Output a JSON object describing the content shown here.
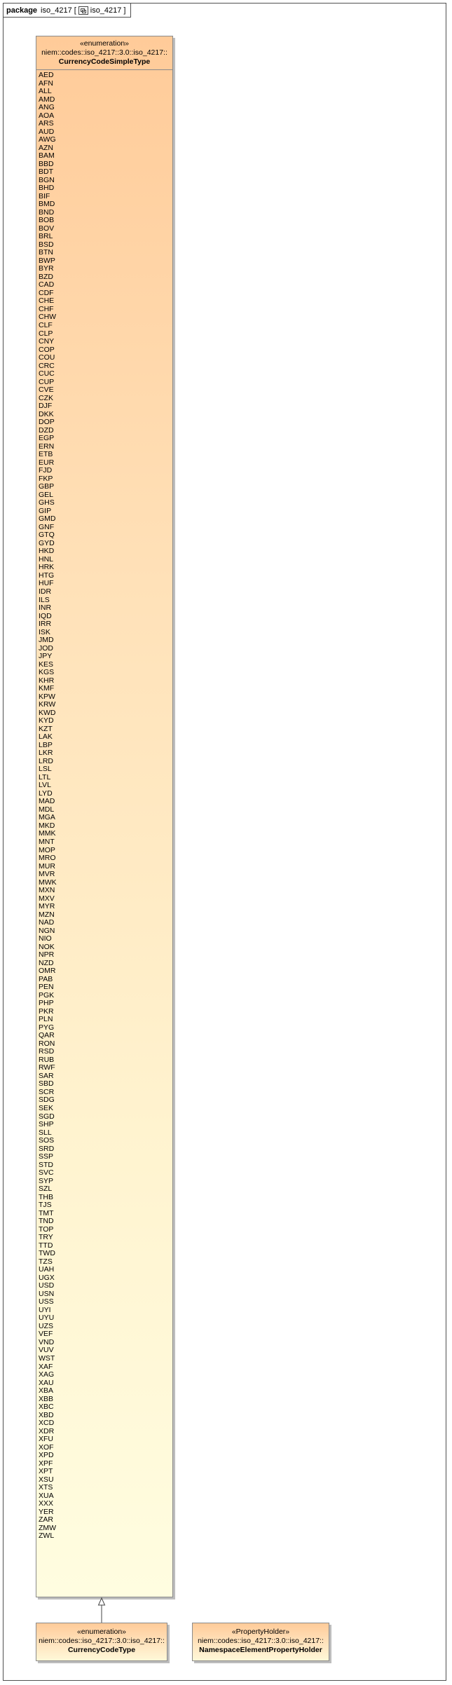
{
  "frame": {
    "keyword": "package",
    "name": "iso_4217",
    "bracket_open": "[",
    "diagram_name": "iso_4217",
    "bracket_close": "]",
    "icon": "diagram-icon"
  },
  "classes": {
    "currency_code_simple_type": {
      "stereotype": "«enumeration»",
      "qualifier": "niem::codes::iso_4217::3.0::iso_4217::",
      "name": "CurrencyCodeSimpleType",
      "literals": [
        "AED",
        "AFN",
        "ALL",
        "AMD",
        "ANG",
        "AOA",
        "ARS",
        "AUD",
        "AWG",
        "AZN",
        "BAM",
        "BBD",
        "BDT",
        "BGN",
        "BHD",
        "BIF",
        "BMD",
        "BND",
        "BOB",
        "BOV",
        "BRL",
        "BSD",
        "BTN",
        "BWP",
        "BYR",
        "BZD",
        "CAD",
        "CDF",
        "CHE",
        "CHF",
        "CHW",
        "CLF",
        "CLP",
        "CNY",
        "COP",
        "COU",
        "CRC",
        "CUC",
        "CUP",
        "CVE",
        "CZK",
        "DJF",
        "DKK",
        "DOP",
        "DZD",
        "EGP",
        "ERN",
        "ETB",
        "EUR",
        "FJD",
        "FKP",
        "GBP",
        "GEL",
        "GHS",
        "GIP",
        "GMD",
        "GNF",
        "GTQ",
        "GYD",
        "HKD",
        "HNL",
        "HRK",
        "HTG",
        "HUF",
        "IDR",
        "ILS",
        "INR",
        "IQD",
        "IRR",
        "ISK",
        "JMD",
        "JOD",
        "JPY",
        "KES",
        "KGS",
        "KHR",
        "KMF",
        "KPW",
        "KRW",
        "KWD",
        "KYD",
        "KZT",
        "LAK",
        "LBP",
        "LKR",
        "LRD",
        "LSL",
        "LTL",
        "LVL",
        "LYD",
        "MAD",
        "MDL",
        "MGA",
        "MKD",
        "MMK",
        "MNT",
        "MOP",
        "MRO",
        "MUR",
        "MVR",
        "MWK",
        "MXN",
        "MXV",
        "MYR",
        "MZN",
        "NAD",
        "NGN",
        "NIO",
        "NOK",
        "NPR",
        "NZD",
        "OMR",
        "PAB",
        "PEN",
        "PGK",
        "PHP",
        "PKR",
        "PLN",
        "PYG",
        "QAR",
        "RON",
        "RSD",
        "RUB",
        "RWF",
        "SAR",
        "SBD",
        "SCR",
        "SDG",
        "SEK",
        "SGD",
        "SHP",
        "SLL",
        "SOS",
        "SRD",
        "SSP",
        "STD",
        "SVC",
        "SYP",
        "SZL",
        "THB",
        "TJS",
        "TMT",
        "TND",
        "TOP",
        "TRY",
        "TTD",
        "TWD",
        "TZS",
        "UAH",
        "UGX",
        "USD",
        "USN",
        "USS",
        "UYI",
        "UYU",
        "UZS",
        "VEF",
        "VND",
        "VUV",
        "WST",
        "XAF",
        "XAG",
        "XAU",
        "XBA",
        "XBB",
        "XBC",
        "XBD",
        "XCD",
        "XDR",
        "XFU",
        "XOF",
        "XPD",
        "XPF",
        "XPT",
        "XSU",
        "XTS",
        "XUA",
        "XXX",
        "YER",
        "ZAR",
        "ZMW",
        "ZWL"
      ]
    },
    "currency_code_type": {
      "stereotype": "«enumeration»",
      "qualifier": "niem::codes::iso_4217::3.0::iso_4217::",
      "name": "CurrencyCodeType"
    },
    "namespace_element_property_holder": {
      "stereotype": "«PropertyHolder»",
      "qualifier": "niem::codes::iso_4217::3.0::iso_4217::",
      "name": "NamespaceElementPropertyHolder"
    }
  },
  "connectors": [
    {
      "type": "generalization",
      "from": "CurrencyCodeType",
      "to": "CurrencyCodeSimpleType"
    }
  ],
  "colors": {
    "class_fill_top": "#ffcb99",
    "class_fill_bottom": "#fffde0",
    "border": "#8a8a8a",
    "shadow": "#bdbdbd"
  }
}
